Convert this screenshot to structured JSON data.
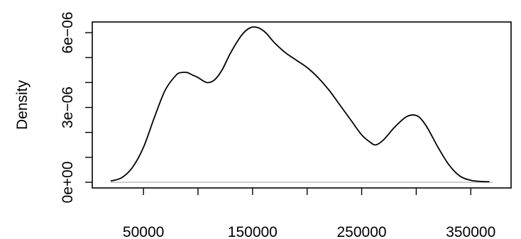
{
  "chart_data": {
    "type": "line",
    "title": "",
    "xlabel": "",
    "ylabel": "Density",
    "xlim": [
      20000,
      370000
    ],
    "ylim": [
      0,
      6.2e-06
    ],
    "x_ticks": [
      {
        "value": 50000,
        "label": "50000"
      },
      {
        "value": 100000,
        "label": ""
      },
      {
        "value": 150000,
        "label": "150000"
      },
      {
        "value": 200000,
        "label": ""
      },
      {
        "value": 250000,
        "label": "250000"
      },
      {
        "value": 300000,
        "label": ""
      },
      {
        "value": 350000,
        "label": "350000"
      }
    ],
    "y_ticks": [
      {
        "value": 0,
        "label": "0e+00"
      },
      {
        "value": 1e-06,
        "label": ""
      },
      {
        "value": 2e-06,
        "label": ""
      },
      {
        "value": 3e-06,
        "label": "3e−06"
      },
      {
        "value": 4e-06,
        "label": ""
      },
      {
        "value": 5e-06,
        "label": ""
      },
      {
        "value": 6e-06,
        "label": "6e−06"
      }
    ],
    "baseline": 0,
    "baseline_color": "#bebebe",
    "line_color": "#000000",
    "series": [
      {
        "x": [
          20000,
          30000,
          40000,
          50000,
          60000,
          70000,
          80000,
          85000,
          90000,
          95000,
          100000,
          108000,
          115000,
          122000,
          130000,
          140000,
          148000,
          155000,
          162000,
          170000,
          180000,
          190000,
          200000,
          210000,
          220000,
          230000,
          240000,
          250000,
          258000,
          263000,
          270000,
          280000,
          290000,
          297000,
          303000,
          310000,
          320000,
          330000,
          340000,
          350000,
          360000,
          367000
        ],
        "y": [
          5e-08,
          1.8e-07,
          6e-07,
          1.4e-06,
          2.6e-06,
          3.7e-06,
          4.3e-06,
          4.4e-06,
          4.4e-06,
          4.3e-06,
          4.2e-06,
          4e-06,
          4.1e-06,
          4.5e-06,
          5.2e-06,
          5.9e-06,
          6.2e-06,
          6.2e-06,
          6e-06,
          5.6e-06,
          5.2e-06,
          4.9e-06,
          4.6e-06,
          4.2e-06,
          3.7e-06,
          3.1e-06,
          2.5e-06,
          1.9e-06,
          1.6e-06,
          1.5e-06,
          1.7e-06,
          2.2e-06,
          2.6e-06,
          2.7e-06,
          2.6e-06,
          2.2e-06,
          1.4e-06,
          7e-07,
          2.5e-07,
          8e-08,
          3e-08,
          2e-08
        ]
      }
    ]
  }
}
